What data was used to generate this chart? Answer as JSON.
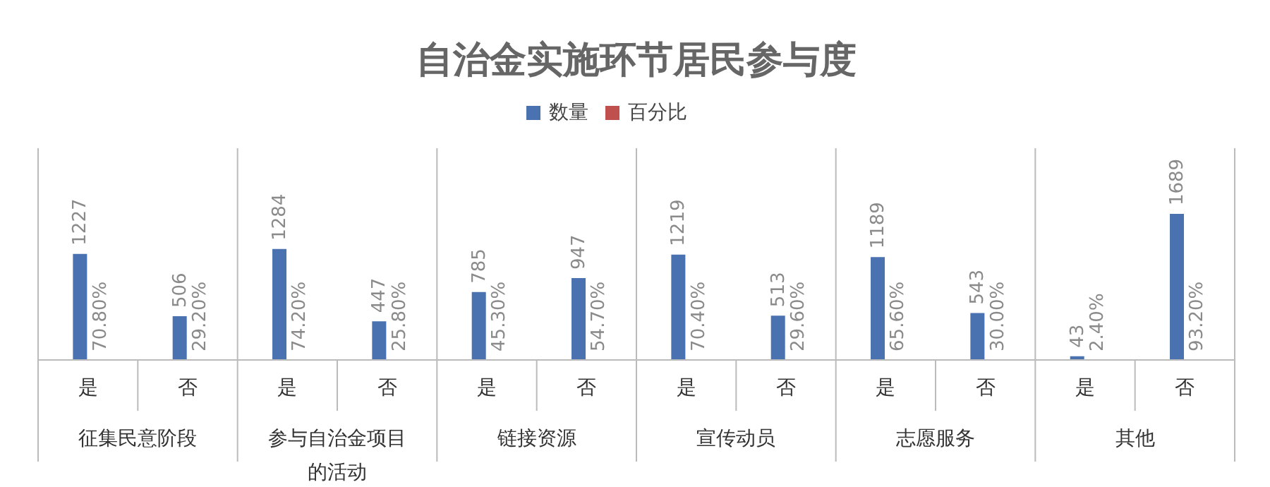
{
  "chart_data": {
    "type": "bar",
    "title": "自治金实施环节居民参与度",
    "categories": [
      "是",
      "否",
      "是",
      "否",
      "是",
      "否",
      "是",
      "否",
      "是",
      "否",
      "是",
      "否"
    ],
    "annotations": [
      "征集民意阶段",
      "参与自治金项目的活动",
      "链接资源",
      "宣传动员",
      "志愿服务",
      "其他"
    ],
    "series": [
      {
        "name": "数量",
        "color": "#4a72b0",
        "values": [
          1227,
          506,
          1284,
          447,
          785,
          947,
          1219,
          513,
          1189,
          543,
          43,
          1689
        ],
        "value_labels": [
          "1227",
          "506",
          "1284",
          "447",
          "785",
          "947",
          "1219",
          "513",
          "1189",
          "543",
          "43",
          "1689"
        ]
      },
      {
        "name": "百分比",
        "color": "#c0504d",
        "values": [
          0.708,
          0.292,
          0.742,
          0.258,
          0.453,
          0.547,
          0.704,
          0.296,
          0.656,
          0.3,
          0.024,
          0.932
        ],
        "value_labels": [
          "70.80%",
          "29.20%",
          "74.20%",
          "25.80%",
          "45.30%",
          "54.70%",
          "70.40%",
          "29.60%",
          "65.60%",
          "30.00%",
          "2.40%",
          "93.20%"
        ]
      }
    ],
    "legend": "top",
    "grid": false
  }
}
